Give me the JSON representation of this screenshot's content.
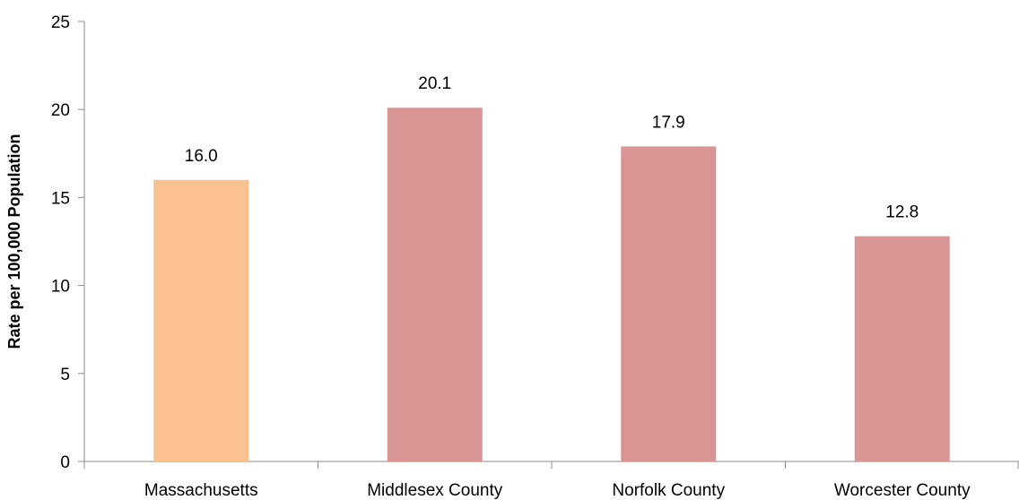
{
  "chart_data": {
    "type": "bar",
    "title": "",
    "xlabel": "",
    "ylabel": "Rate per 100,000 Population",
    "ylim": [
      0,
      25
    ],
    "yticks": [
      0,
      5,
      10,
      15,
      20,
      25
    ],
    "categories": [
      "Massachusetts",
      "Middlesex County",
      "Norfolk County",
      "Worcester County"
    ],
    "values": [
      16.0,
      20.1,
      17.9,
      12.8
    ],
    "data_labels": [
      "16.0",
      "20.1",
      "17.9",
      "12.8"
    ],
    "colors": [
      "#f9c090",
      "#d99594",
      "#d99594",
      "#d99594"
    ],
    "grid": false,
    "legend": "none"
  }
}
